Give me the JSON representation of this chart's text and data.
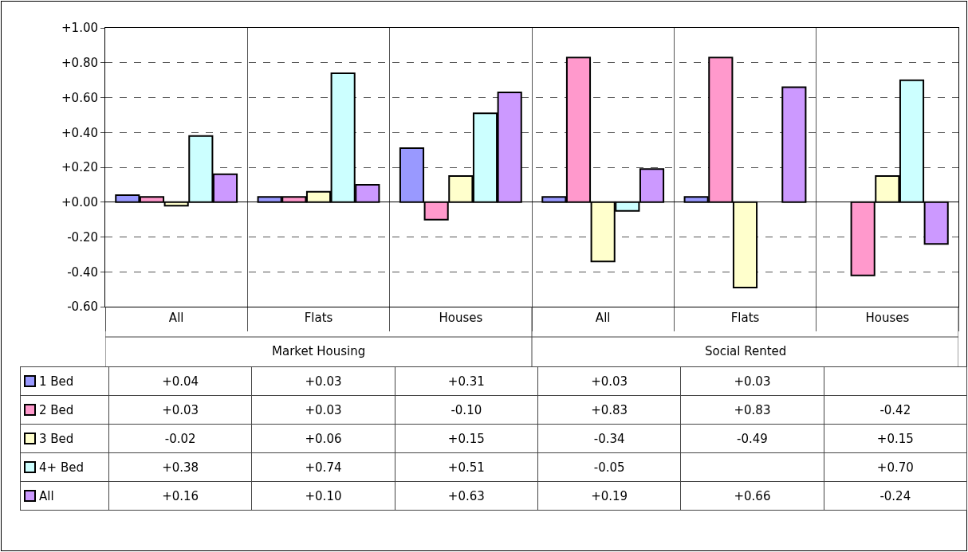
{
  "chart_data": {
    "type": "bar",
    "categories": [
      "All",
      "Flats",
      "Houses",
      "All",
      "Flats",
      "Houses"
    ],
    "annotations": [
      "Market Housing",
      "Social Rented"
    ],
    "series": [
      {
        "name": "1 Bed",
        "color": "#9999ff",
        "values": [
          0.04,
          0.03,
          0.31,
          0.03,
          0.03,
          null
        ],
        "value_labels": [
          "+0.04",
          "+0.03",
          "+0.31",
          "+0.03",
          "+0.03",
          null
        ]
      },
      {
        "name": "2 Bed",
        "color": "#ff99cc",
        "values": [
          0.03,
          0.03,
          -0.1,
          0.83,
          0.83,
          -0.42
        ],
        "value_labels": [
          "+0.03",
          "+0.03",
          "-0.10",
          "+0.83",
          "+0.83",
          "-0.42"
        ]
      },
      {
        "name": "3 Bed",
        "color": "#ffffcc",
        "values": [
          -0.02,
          0.06,
          0.15,
          -0.34,
          -0.49,
          0.15
        ],
        "value_labels": [
          "-0.02",
          "+0.06",
          "+0.15",
          "-0.34",
          "-0.49",
          "+0.15"
        ]
      },
      {
        "name": "4+ Bed",
        "color": "#ccffff",
        "values": [
          0.38,
          0.74,
          0.51,
          -0.05,
          null,
          0.7
        ],
        "value_labels": [
          "+0.38",
          "+0.74",
          "+0.51",
          "-0.05",
          null,
          "+0.70"
        ]
      },
      {
        "name": "All",
        "color": "#cc99ff",
        "values": [
          0.16,
          0.1,
          0.63,
          0.19,
          0.66,
          -0.24
        ],
        "value_labels": [
          "+0.16",
          "+0.10",
          "+0.63",
          "+0.19",
          "+0.66",
          "-0.24"
        ]
      }
    ],
    "ylim": [
      -0.6,
      1.0
    ],
    "yticks": [
      {
        "value": -0.6,
        "label": "-0.60"
      },
      {
        "value": -0.4,
        "label": "-0.40"
      },
      {
        "value": -0.2,
        "label": "-0.20"
      },
      {
        "value": 0,
        "label": "+0.00"
      },
      {
        "value": 0.2,
        "label": "+0.20"
      },
      {
        "value": 0.4,
        "label": "+0.40"
      },
      {
        "value": 0.6,
        "label": "+0.60"
      },
      {
        "value": 0.8,
        "label": "+0.80"
      },
      {
        "value": 1.0,
        "label": "+1.00"
      }
    ],
    "grid": true,
    "legend": "bottom left"
  }
}
